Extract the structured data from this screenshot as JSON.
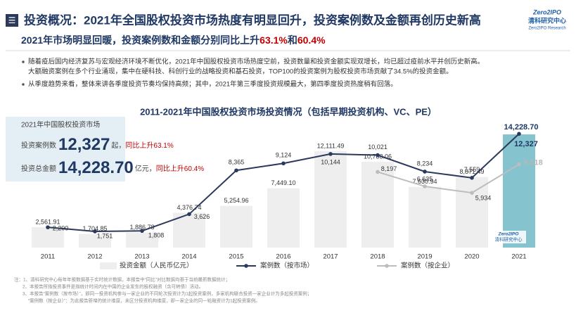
{
  "header": {
    "icon": "☰",
    "title": "投资概况：2021年全国股权投资市场热度有明显回升，投资案例数及金额再创历史新高",
    "logo_brand": "Zero2IPO",
    "logo_cn": "清科研究中心",
    "logo_en": "Zero2IPO Research"
  },
  "subtitle": {
    "lead": "2021年市场明显回暖，投资案例数和金额分别同比上升",
    "hl1": "63.1%",
    "mid": "和",
    "hl2": "60.4%"
  },
  "bullets": [
    [
      "随着疫后国内经济复苏与宏观经济环境不断优化，2021年中国股权投资市场热度空前，投资数量和投资金额实现双增长，均已超过疫前水平并创历史新高。",
      "大额融资案例在多个行业涌现，集中在硬科技、科创行业的战略投资和基石投资，TOP100的投资案例为股权投资市场贡献了34.5%的投资金额。"
    ],
    [
      "从季度趋势来看，整体来讲各季度投资节奏均保持高频；其中，2021年第三季度投资规模最大，第四季度投资热度稍有回落。"
    ]
  ],
  "highlight_box": {
    "title": "2021年中国股权投资市场",
    "count_label": "投资案例数",
    "count": "12,327",
    "count_unit": "起，",
    "count_growth": "同比上升63.1%",
    "amount_label": "投资总金额",
    "amount": "14,228.70",
    "amount_unit": "亿元，",
    "amount_growth": "同比上升60.4%"
  },
  "chart_data": {
    "type": "bar_line",
    "title": "2011-2021年中国股权投资市场投资情况（包括早期投资机构、VC、PE）",
    "categories": [
      "2011",
      "2012",
      "2013",
      "2014",
      "2015",
      "2016",
      "2017",
      "2018",
      "2019",
      "2020",
      "2021"
    ],
    "ylim": [
      0,
      14500
    ],
    "y2lim": [
      0,
      12500
    ],
    "series": [
      {
        "name": "投资金额（人民币亿元）",
        "type": "bar",
        "color": "#eeeeee",
        "colors": [
          "#eeeeee",
          "#eeeeee",
          "#eeeeee",
          "#eeeeee",
          "#eeeeee",
          "#eeeeee",
          "#eeeeee",
          "#eeeeee",
          "#eeeeee",
          "#eeeeee",
          "#85c4cf"
        ],
        "values": [
          2561.91,
          1704.85,
          1886.78,
          4376.74,
          5254.96,
          7449.1,
          12111.49,
          10788.06,
          7630.94,
          8871.49,
          14228.7
        ],
        "value_labels": [
          "2,561.91",
          "1,704.85",
          "1,886.78",
          "4,376.74",
          "5,254.96",
          "7,449.10",
          "12,111.49",
          "10,788.06",
          "7,630.94",
          "8,871.49",
          "14,228.70"
        ]
      },
      {
        "name": "案例数（按市场）",
        "type": "line",
        "axis": "y2",
        "color": "#2b3a5c",
        "values": [
          2200,
          1751,
          1808,
          3626,
          8365,
          9124,
          10144,
          10021,
          8234,
          7559,
          12327
        ],
        "value_labels": [
          "2,200",
          "1,751",
          "1,808",
          "3,626",
          "8,365",
          "9,124",
          "10,144",
          "10,021",
          "8,234",
          "7,559",
          "12,327"
        ]
      },
      {
        "name": "案例数（按企业）",
        "type": "line",
        "axis": "y2",
        "color": "#bdbdbd",
        "values": [
          null,
          null,
          null,
          null,
          null,
          null,
          null,
          8197,
          6635,
          5934,
          9018
        ],
        "value_labels": [
          null,
          null,
          null,
          null,
          null,
          null,
          null,
          "8,197",
          "6,635",
          "5,934",
          "9,018"
        ]
      }
    ]
  },
  "notes": [
    "注：1、清科研究中心每年年报数据基于实时统计数据，本报告中“同比”对比数据均基于当前最新数据统计；",
    "2、本报告所指投资事件是指统计时间内在中国的企业发生的股权融资（含可转债）活动。",
    "3、本报告“案例数（按市场）”，即同一投资机构参与一家企业的不同轮次投资计为1起投资案例，多家机构联合投资一家企业计为多起投资案例；",
    "“案例数（按企业）”：为此报告新增的统计维度，未区分投资机构维度，即一家企业的同一轮融资计为1起投资案例。"
  ]
}
